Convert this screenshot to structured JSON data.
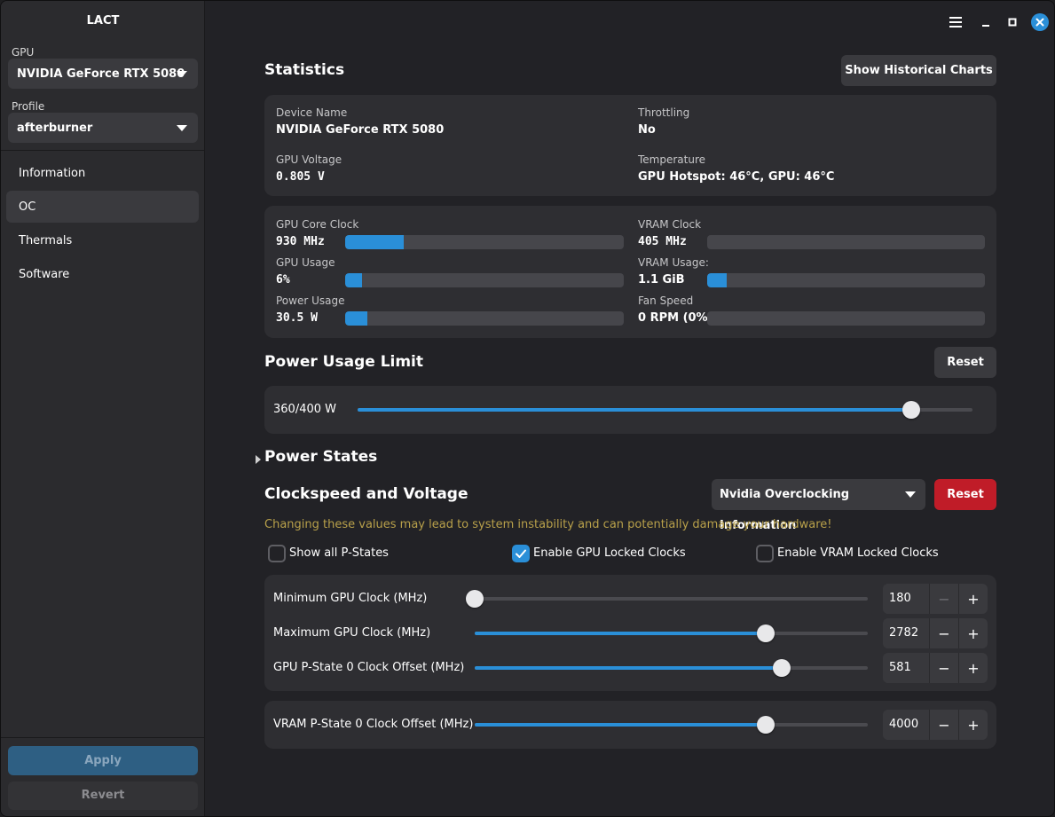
{
  "app": {
    "title": "LACT"
  },
  "sidebar": {
    "gpu_label": "GPU",
    "gpu_value": "NVIDIA GeForce RTX 5080",
    "profile_label": "Profile",
    "profile_value": "afterburner",
    "items": [
      {
        "label": "Information"
      },
      {
        "label": "OC"
      },
      {
        "label": "Thermals"
      },
      {
        "label": "Software"
      }
    ],
    "active_item": "OC",
    "apply_label": "Apply",
    "revert_label": "Revert"
  },
  "statistics": {
    "title": "Statistics",
    "history_button": "Show Historical Charts",
    "device_name_label": "Device Name",
    "device_name": "NVIDIA GeForce RTX 5080",
    "throttling_label": "Throttling",
    "throttling": "No",
    "voltage_label": "GPU Voltage",
    "voltage": "0.805 V",
    "temperature_label": "Temperature",
    "temperature": "GPU Hotspot: 46°C, GPU: 46°C",
    "core_clock_label": "GPU Core Clock",
    "core_clock": "930 MHz",
    "core_clock_fraction": 0.21,
    "vram_clock_label": "VRAM Clock",
    "vram_clock": "405 MHz",
    "vram_clock_fraction": 0.0,
    "usage_label": "GPU Usage",
    "usage": "6%",
    "usage_fraction": 0.06,
    "vram_usage_label": "VRAM Usage:",
    "vram_usage": "1.1 GiB",
    "vram_usage_fraction": 0.07,
    "power_label": "Power Usage",
    "power": "30.5 W",
    "power_fraction": 0.08,
    "fan_label": "Fan Speed",
    "fan": "0 RPM (0%)",
    "fan_fraction": 0.0
  },
  "power_limit": {
    "title": "Power Usage Limit",
    "reset_label": "Reset",
    "value_text": "360/400 W",
    "fraction": 0.9
  },
  "power_states": {
    "title": "Power States"
  },
  "clockspeed": {
    "title": "Clockspeed and Voltage",
    "info_dropdown": "Nvidia Overclocking Information",
    "reset_label": "Reset",
    "warning": "Changing these values may lead to system instability and can potentially damage your hardware!",
    "show_all_pstates": "Show all P-States",
    "show_all_pstates_checked": false,
    "gpu_locked": "Enable GPU Locked Clocks",
    "gpu_locked_checked": true,
    "vram_locked": "Enable VRAM Locked Clocks",
    "vram_locked_checked": false,
    "rows": [
      {
        "label": "Minimum GPU Clock (MHz)",
        "value": "180",
        "fraction": 0.0
      },
      {
        "label": "Maximum GPU Clock (MHz)",
        "value": "2782",
        "fraction": 0.74
      },
      {
        "label": "GPU P-State 0 Clock Offset (MHz)",
        "value": "581",
        "fraction": 0.78
      },
      {
        "label": "VRAM P-State 0 Clock Offset (MHz)",
        "value": "4000",
        "fraction": 0.74
      }
    ],
    "minus": "−",
    "plus": "+"
  },
  "colors": {
    "accent": "#2a8fd8",
    "danger": "#c01c28",
    "warning": "#b8a04a"
  }
}
